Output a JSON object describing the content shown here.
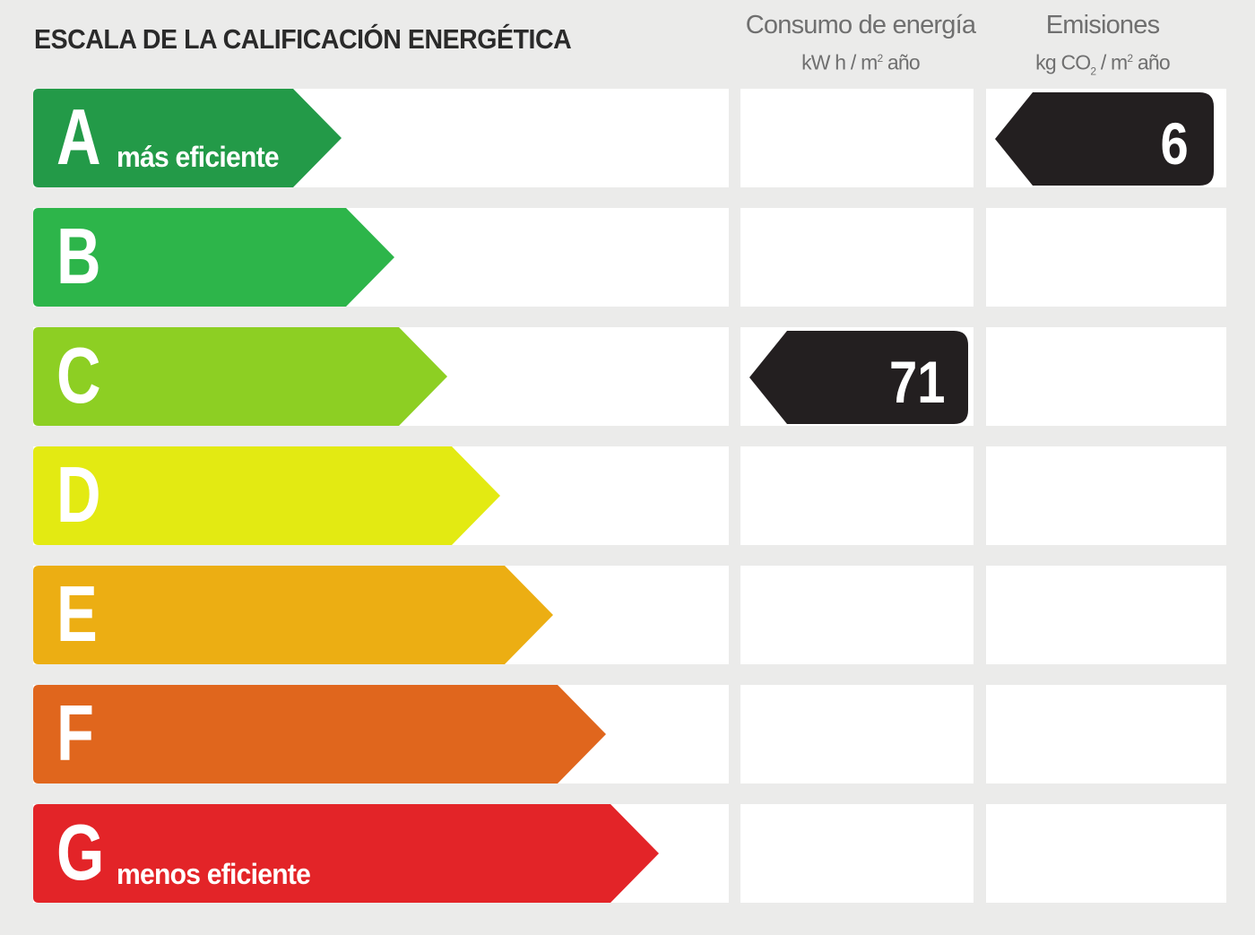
{
  "title": "ESCALA DE LA CALIFICACIÓN ENERGÉTICA",
  "columns": {
    "consumo": {
      "heading": "Consumo de energía",
      "unit_pre": "kW h / m",
      "unit_sup": "2",
      "unit_post": " año"
    },
    "emisiones": {
      "heading": "Emisiones",
      "unit_pre": "kg CO",
      "unit_sub": "2",
      "unit_mid": " / m",
      "unit_sup": "2",
      "unit_post": " año"
    }
  },
  "ratings": [
    {
      "letter": "A",
      "label": "más eficiente",
      "color": "#239a48"
    },
    {
      "letter": "B",
      "label": "",
      "color": "#2db54a"
    },
    {
      "letter": "C",
      "label": "",
      "color": "#8dcf23"
    },
    {
      "letter": "D",
      "label": "",
      "color": "#e3ea12"
    },
    {
      "letter": "E",
      "label": "",
      "color": "#ecae13"
    },
    {
      "letter": "F",
      "label": "",
      "color": "#e0661d"
    },
    {
      "letter": "G",
      "label": "menos eficiente",
      "color": "#e32428"
    }
  ],
  "consumption": {
    "rating": "C",
    "value": "71"
  },
  "emissions": {
    "rating": "A",
    "value": "6"
  },
  "badge_color": "#231f20"
}
